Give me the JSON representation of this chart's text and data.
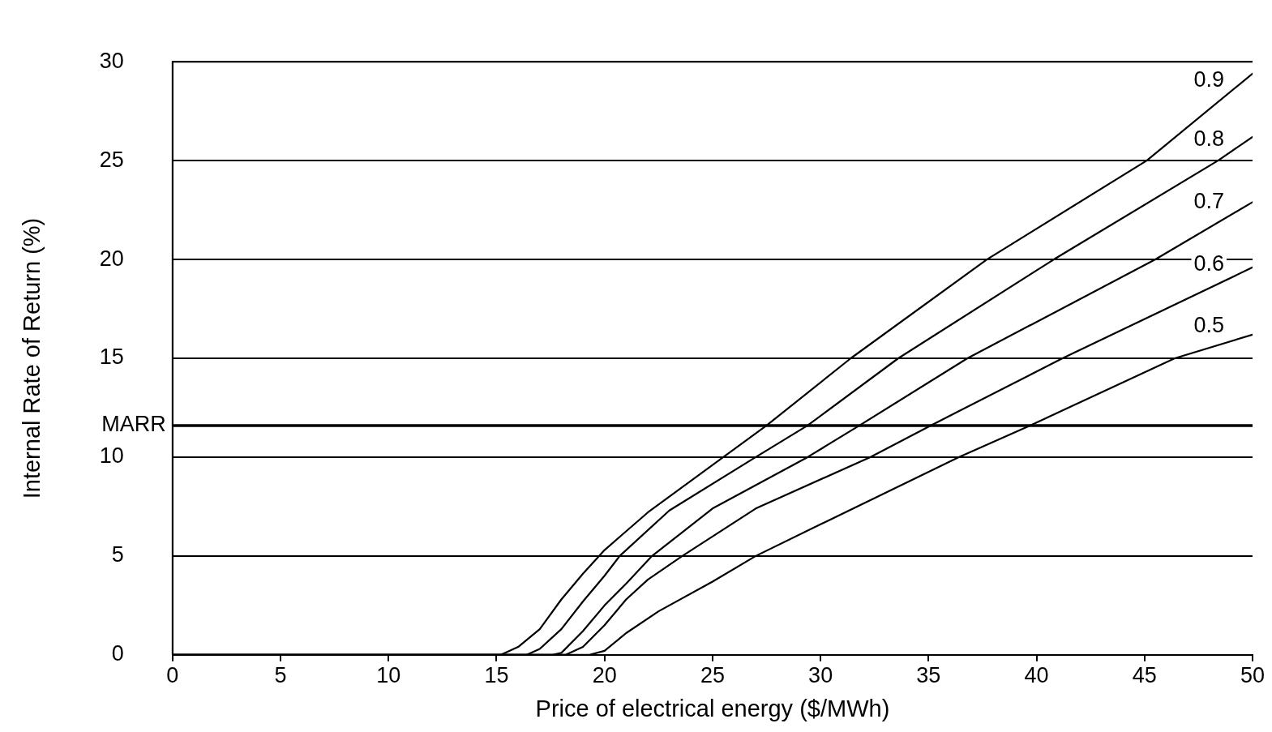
{
  "chart_data": {
    "type": "line",
    "xlabel": "Price of electrical energy ($/MWh)",
    "ylabel": "Internal Rate of Return (%)",
    "xlim": [
      0,
      50
    ],
    "xticks": [
      0,
      5,
      10,
      15,
      20,
      25,
      30,
      35,
      40,
      45,
      50
    ],
    "ylim": [
      0,
      30
    ],
    "yticks": [
      0,
      5,
      10,
      15,
      20,
      25,
      30
    ],
    "grid": "y",
    "legend": false,
    "marker": "none",
    "line_style": "solid",
    "ref_lines": [
      {
        "axis": "y",
        "value": 11.6,
        "label": "MARR",
        "color": "#000000"
      }
    ],
    "series": [
      {
        "name": "0.9",
        "color": "#000000",
        "x": [
          0,
          15.2,
          16,
          17,
          18,
          19,
          20,
          22,
          25.5,
          27.5,
          31.4,
          37.7,
          45.1,
          50
        ],
        "values": [
          0,
          0,
          0.4,
          1.3,
          2.8,
          4.1,
          5.3,
          7.2,
          10,
          11.6,
          15,
          20,
          25,
          29.4
        ]
      },
      {
        "name": "0.8",
        "color": "#000000",
        "x": [
          0,
          16.4,
          17,
          18,
          19,
          20,
          20.7,
          23,
          27,
          29.4,
          33.6,
          40.8,
          48.4,
          50
        ],
        "values": [
          0,
          0,
          0.3,
          1.3,
          2.7,
          4,
          5,
          7.3,
          10,
          11.6,
          15,
          20,
          25,
          26.2
        ]
      },
      {
        "name": "0.7",
        "color": "#000000",
        "x": [
          0,
          17.6,
          18,
          19,
          20,
          21,
          22.2,
          25,
          29.4,
          31.8,
          36.8,
          45.5,
          50
        ],
        "values": [
          0,
          0,
          0.1,
          1.2,
          2.5,
          3.6,
          5,
          7.4,
          10,
          11.6,
          15,
          20,
          22.9
        ]
      },
      {
        "name": "0.6",
        "color": "#000000",
        "x": [
          0,
          18.2,
          19,
          20,
          21,
          22,
          23.6,
          27,
          32.3,
          35.1,
          41.2,
          50
        ],
        "values": [
          0,
          0,
          0.4,
          1.5,
          2.8,
          3.8,
          5,
          7.4,
          10,
          11.6,
          15,
          19.6
        ]
      },
      {
        "name": "0.5",
        "color": "#000000",
        "x": [
          0,
          19.3,
          20,
          21,
          22.5,
          25,
          27,
          30,
          36.4,
          39.7,
          46.4,
          50
        ],
        "values": [
          0,
          0,
          0.2,
          1.1,
          2.2,
          3.7,
          5,
          6.6,
          10,
          11.6,
          15,
          16.2
        ]
      }
    ]
  }
}
